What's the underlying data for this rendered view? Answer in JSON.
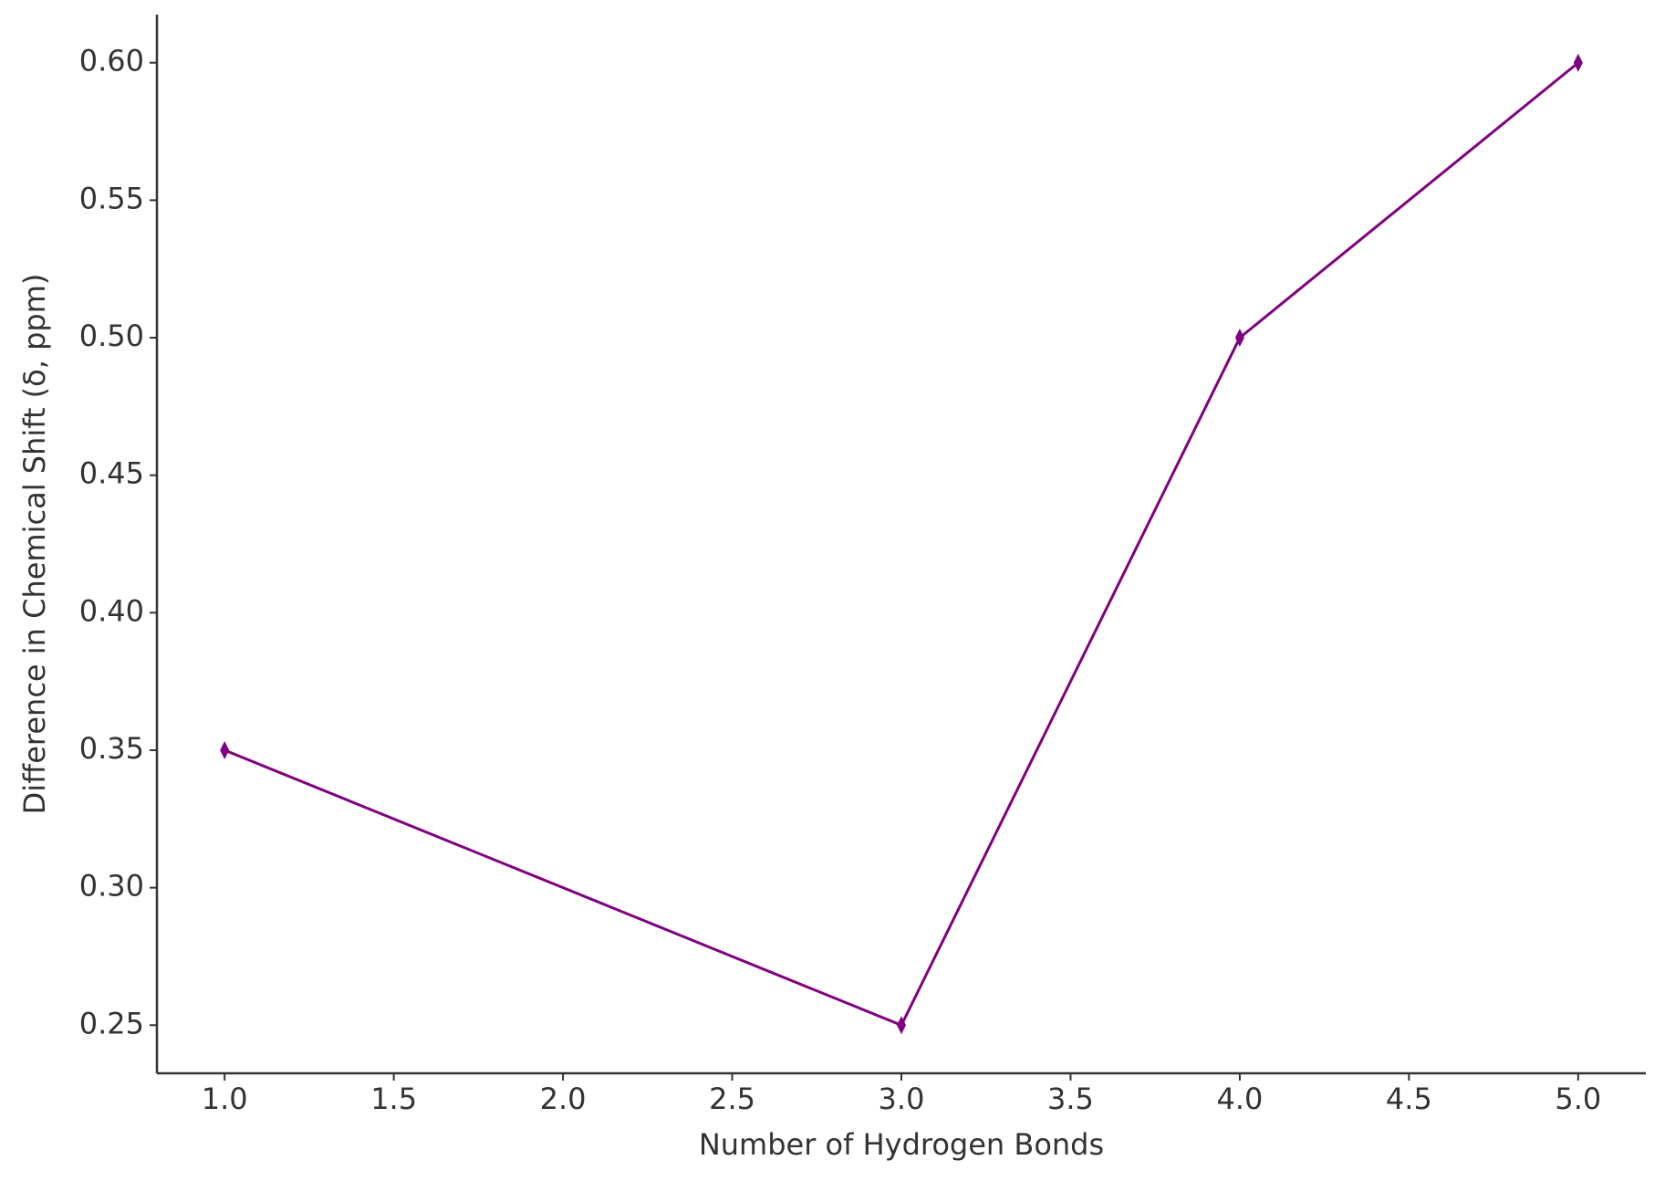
{
  "chart_data": {
    "type": "line",
    "x_label": "Number of Hydrogen Bonds",
    "y_label": "Difference in Chemical Shift (δ, ppm)",
    "x": [
      1,
      3,
      4,
      5
    ],
    "series": [
      {
        "color": "#800080",
        "values": [
          0.35,
          0.25,
          0.5,
          0.6
        ]
      }
    ],
    "xlim": [
      0.8,
      5.2
    ],
    "xticks": [
      {
        "value": 1,
        "label": "1.0"
      },
      1.5,
      {
        "value": 2,
        "label": "2.0"
      },
      2.5,
      {
        "value": 3,
        "label": "3.0"
      },
      3.5,
      {
        "value": 4,
        "label": "4.0"
      },
      4.5,
      {
        "value": 5,
        "label": "5.0"
      }
    ],
    "ylim": [
      0.2325,
      0.6175
    ],
    "yticks": [
      0.25,
      {
        "value": 0.3,
        "label": "0.30"
      },
      0.35,
      {
        "value": 0.4,
        "label": "0.40"
      },
      0.45,
      {
        "value": 0.5,
        "label": "0.50"
      },
      0.55,
      {
        "value": 0.6,
        "label": "0.60"
      }
    ],
    "grid": false
  }
}
